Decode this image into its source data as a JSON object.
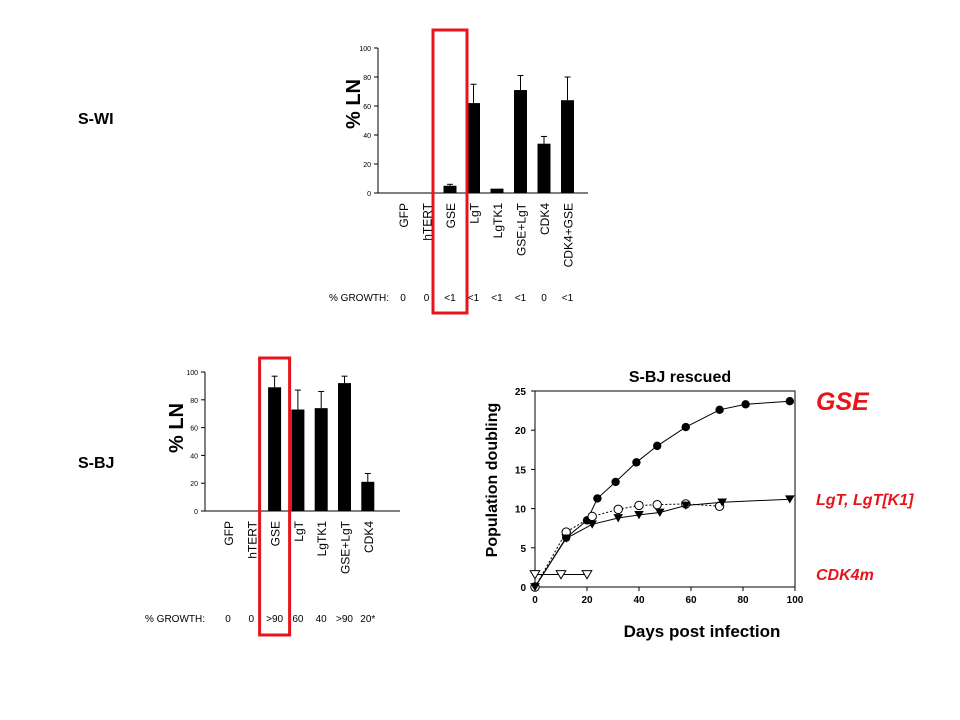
{
  "labels": {
    "swi_row": "S-WI",
    "sbj_row": "S-BJ",
    "gse_legend": "GSE",
    "lgt_legend": "LgT, LgT[K1]",
    "cdk4m_legend": "CDK4m"
  },
  "colors": {
    "highlight": "#e8141c",
    "legend_text": "#e8141c",
    "bars": "#000000"
  },
  "chart_data": [
    {
      "id": "swi",
      "type": "bar",
      "ylabel": "% LN",
      "ylim": [
        0,
        100
      ],
      "yticks": [
        0,
        20,
        40,
        60,
        80,
        100
      ],
      "categories": [
        "GFP",
        "hTERT",
        "GSE",
        "LgT",
        "LgTK1",
        "GSE+LgT",
        "CDK4",
        "CDK4+GSE"
      ],
      "values": [
        0,
        0,
        5,
        62,
        3,
        71,
        34,
        64
      ],
      "errors": [
        0,
        0,
        1,
        13,
        0,
        10,
        5,
        16
      ],
      "growth_label": "% GROWTH:",
      "growth": [
        "0",
        "0",
        "<1",
        "<1",
        "<1",
        "<1",
        "0",
        "<1"
      ],
      "highlight_category": "GSE"
    },
    {
      "id": "sbj",
      "type": "bar",
      "ylabel": "% LN",
      "ylim": [
        0,
        100
      ],
      "yticks": [
        0,
        20,
        40,
        60,
        80,
        100
      ],
      "categories": [
        "GFP",
        "hTERT",
        "GSE",
        "LgT",
        "LgTK1",
        "GSE+LgT",
        "CDK4"
      ],
      "values": [
        0,
        0,
        89,
        73,
        74,
        92,
        21
      ],
      "errors": [
        0,
        0,
        8,
        14,
        12,
        5,
        6
      ],
      "growth_label": "% GROWTH:",
      "growth": [
        "0",
        "0",
        ">90",
        "60",
        "40",
        ">90",
        "20*"
      ],
      "highlight_category": "GSE"
    },
    {
      "id": "sbj-rescued",
      "type": "line",
      "title": "S-BJ rescued",
      "xlabel": "Days post infection",
      "ylabel": "Population doubling",
      "xlim": [
        0,
        100
      ],
      "ylim": [
        0,
        25
      ],
      "xticks": [
        0,
        20,
        40,
        60,
        80,
        100
      ],
      "yticks": [
        0,
        5,
        10,
        15,
        20,
        25
      ],
      "series": [
        {
          "marker": "filled-circle",
          "line": "solid",
          "x": [
            0,
            12,
            20,
            24,
            31,
            39,
            47,
            58,
            71,
            81,
            98
          ],
          "y": [
            0,
            6.3,
            8.5,
            11.3,
            13.4,
            15.9,
            18,
            20.4,
            22.6,
            23.3,
            23.7
          ]
        },
        {
          "marker": "open-circle",
          "line": "dotted",
          "x": [
            0,
            12,
            22,
            32,
            40,
            47,
            58,
            71
          ],
          "y": [
            0,
            7,
            9,
            9.9,
            10.4,
            10.5,
            10.6,
            10.3
          ]
        },
        {
          "marker": "filled-triangle-down",
          "line": "solid",
          "x": [
            0,
            12,
            22,
            32,
            40,
            48,
            58,
            72,
            98
          ],
          "y": [
            0,
            6.2,
            8,
            8.8,
            9.2,
            9.5,
            10.4,
            10.8,
            11.2
          ]
        },
        {
          "marker": "open-triangle-down",
          "line": "solid",
          "x": [
            0,
            10,
            20
          ],
          "y": [
            1.6,
            1.6,
            1.6
          ]
        }
      ]
    }
  ]
}
